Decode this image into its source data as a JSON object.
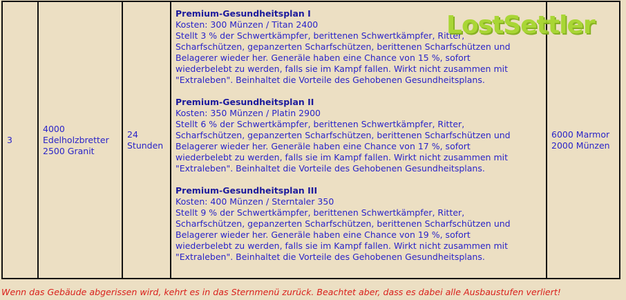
{
  "row": {
    "level": "3",
    "cost_lines": [
      "4000",
      "Edelholzbretter",
      "2500 Granit"
    ],
    "duration_lines": [
      "24",
      "Stunden"
    ],
    "plans": [
      {
        "title": "Premium-Gesundheitsplan I",
        "lines": [
          "Kosten: 300 Münzen / Titan 2400",
          "Stellt 3 % der Schwertkämpfer, berittenen Schwertkämpfer, Ritter,",
          "Scharfschützen, gepanzerten Scharfschützen, berittenen Scharfschützen und",
          "Belagerer wieder her. Generäle haben eine Chance von 15 %, sofort",
          "wiederbelebt zu werden, falls sie im Kampf fallen. Wirkt nicht zusammen mit",
          "\"Extraleben\". Beinhaltet die Vorteile des Gehobenen Gesundheitsplans."
        ]
      },
      {
        "title": "Premium-Gesundheitsplan II",
        "lines": [
          "Kosten: 350 Münzen / Platin 2900",
          "Stellt 6 % der Schwertkämpfer, berittenen Schwertkämpfer, Ritter,",
          "Scharfschützen, gepanzerten Scharfschützen, berittenen Scharfschützen und",
          "Belagerer wieder her. Generäle haben eine Chance von 17 %, sofort",
          "wiederbelebt zu werden, falls sie im Kampf fallen. Wirkt nicht zusammen mit",
          "\"Extraleben\". Beinhaltet die Vorteile des Gehobenen Gesundheitsplans."
        ]
      },
      {
        "title": "Premium-Gesundheitsplan III",
        "lines": [
          "Kosten: 400 Münzen / Sterntaler 350",
          "Stellt 9 % der Schwertkämpfer, berittenen Schwertkämpfer, Ritter,",
          "Scharfschützen, gepanzerten Scharfschützen, berittenen Scharfschützen und",
          "Belagerer wieder her. Generäle haben eine Chance von 19 %, sofort",
          "wiederbelebt zu werden, falls sie im Kampf fallen. Wirkt nicht zusammen mit",
          "\"Extraleben\". Beinhaltet die Vorteile des Gehobenen Gesundheitsplans."
        ]
      }
    ],
    "demolish_lines": [
      "6000 Marmor",
      "2000 Münzen"
    ]
  },
  "watermark": "LostSettler",
  "footer": "Wenn das Gebäude abgerissen wird, kehrt es in das Sternmenü zurück. Beachtet aber, dass es dabei alle Ausbaustufen verliert!",
  "colors": {
    "background": "#ecdfc3",
    "text": "#2a24c8",
    "footer": "#d9201c",
    "watermark": "#a4d62a"
  }
}
